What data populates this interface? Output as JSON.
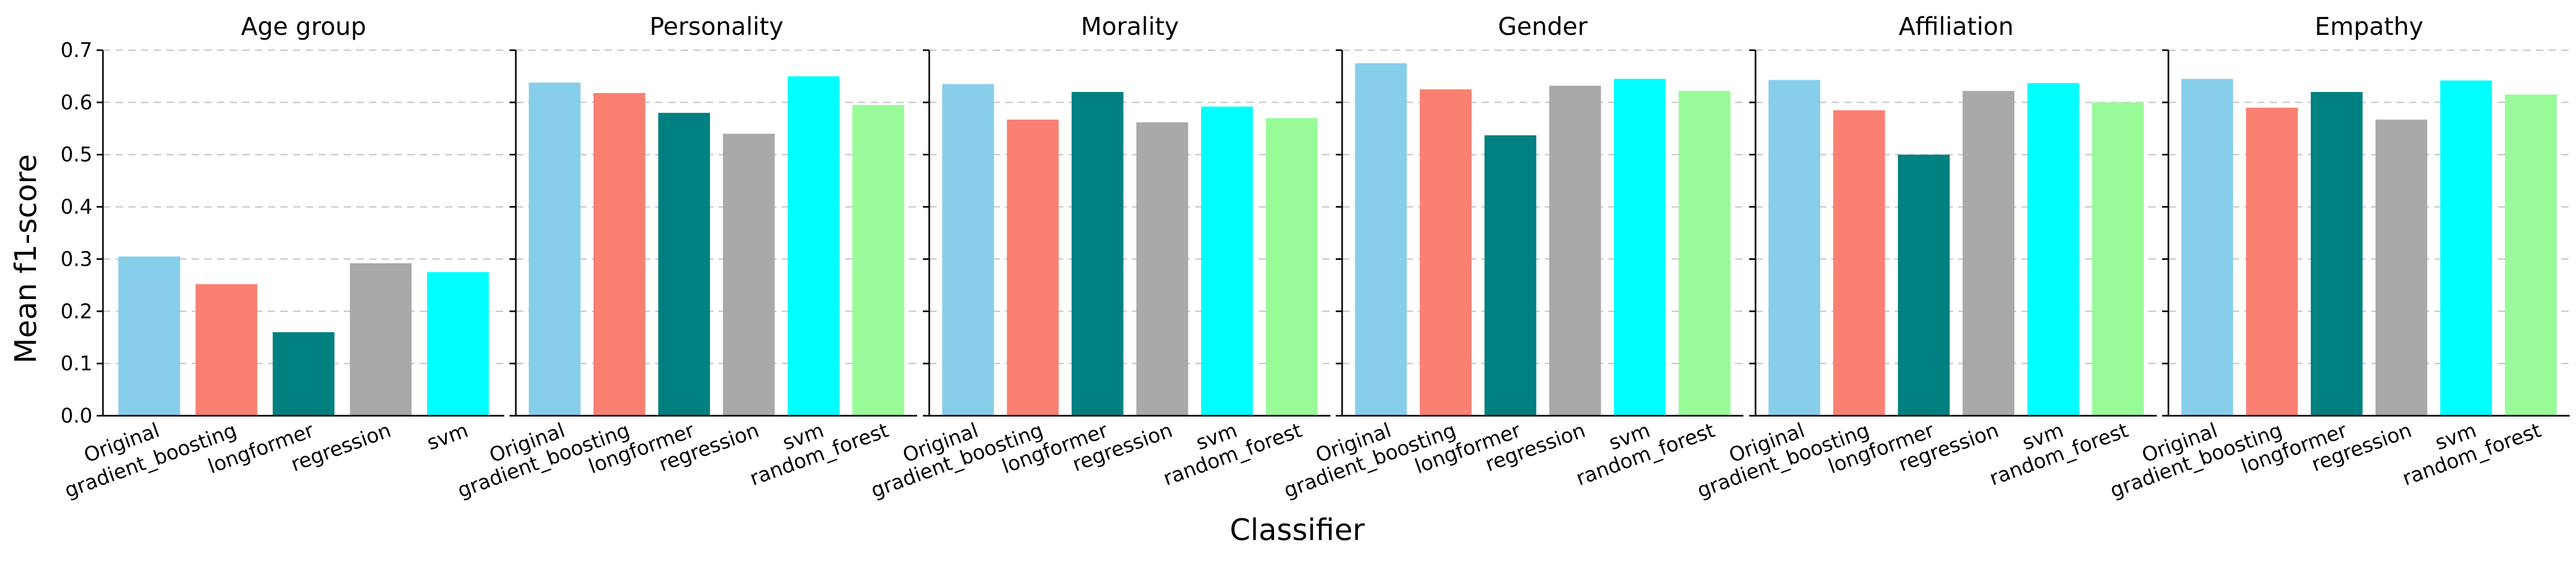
{
  "chart_data": {
    "type": "bar",
    "xlabel": "Classifier",
    "ylabel": "Mean f1-score",
    "ylim": [
      0,
      0.7
    ],
    "yticks": [
      0.0,
      0.1,
      0.2,
      0.3,
      0.4,
      0.5,
      0.6,
      0.7
    ],
    "ytick_labels": [
      "0.0",
      "0.1",
      "0.2",
      "0.3",
      "0.4",
      "0.5",
      "0.6",
      "0.7"
    ],
    "grid": "y-dashed",
    "colors": {
      "Original": "#87CEEB",
      "gradient_boosting": "#FA8072",
      "longformer": "#008080",
      "regression": "#A9A9A9",
      "svm": "#00FFFF",
      "random_forest": "#98FB98"
    },
    "panels": [
      {
        "title": "Age group",
        "categories": [
          "Original",
          "gradient_boosting",
          "longformer",
          "regression",
          "svm"
        ],
        "values": [
          0.305,
          0.252,
          0.16,
          0.292,
          0.275
        ]
      },
      {
        "title": "Personality",
        "categories": [
          "Original",
          "gradient_boosting",
          "longformer",
          "regression",
          "svm",
          "random_forest"
        ],
        "values": [
          0.638,
          0.618,
          0.58,
          0.54,
          0.65,
          0.595
        ]
      },
      {
        "title": "Morality",
        "categories": [
          "Original",
          "gradient_boosting",
          "longformer",
          "regression",
          "svm",
          "random_forest"
        ],
        "values": [
          0.635,
          0.567,
          0.62,
          0.562,
          0.592,
          0.57
        ]
      },
      {
        "title": "Gender",
        "categories": [
          "Original",
          "gradient_boosting",
          "longformer",
          "regression",
          "svm",
          "random_forest"
        ],
        "values": [
          0.675,
          0.625,
          0.537,
          0.632,
          0.645,
          0.622
        ]
      },
      {
        "title": "Affiliation",
        "categories": [
          "Original",
          "gradient_boosting",
          "longformer",
          "regression",
          "svm",
          "random_forest"
        ],
        "values": [
          0.643,
          0.585,
          0.5,
          0.622,
          0.637,
          0.6
        ]
      },
      {
        "title": "Empathy",
        "categories": [
          "Original",
          "gradient_boosting",
          "longformer",
          "regression",
          "svm",
          "random_forest"
        ],
        "values": [
          0.645,
          0.59,
          0.62,
          0.567,
          0.642,
          0.615
        ]
      }
    ]
  }
}
